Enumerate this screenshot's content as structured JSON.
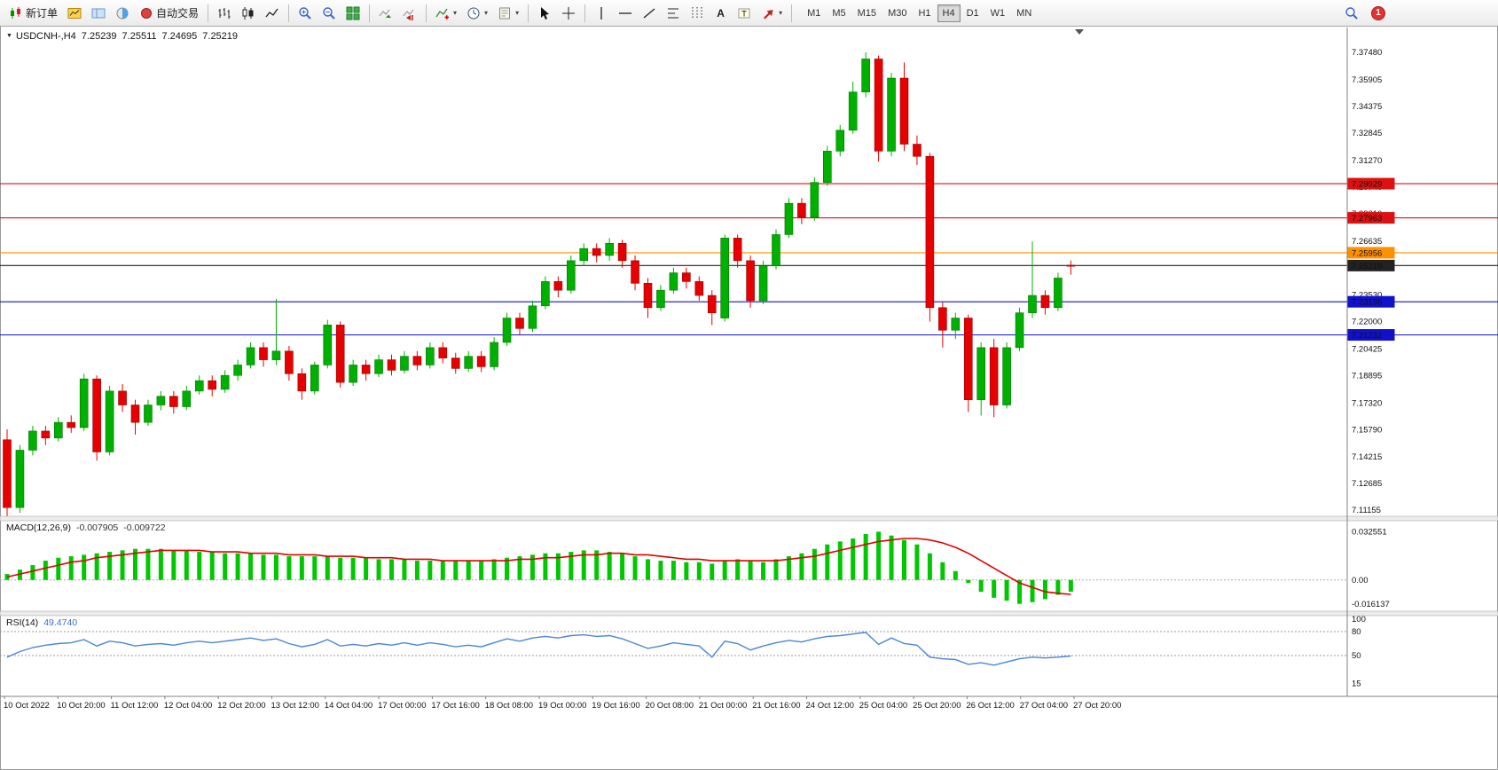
{
  "toolbar": {
    "new_order_label": "新订单",
    "autotrading_label": "自动交易",
    "text_tool_label": "A",
    "timeframes": [
      "M1",
      "M5",
      "M15",
      "M30",
      "H1",
      "H4",
      "D1",
      "W1",
      "MN"
    ],
    "active_timeframe": "H4",
    "notification_count": "1"
  },
  "main_chart": {
    "title_symbol": "USDCNH-,H4",
    "ohlc_text": {
      "open": "7.25239",
      "high": "7.25511",
      "low": "7.24695",
      "close": "7.25219"
    },
    "price_axis_labels": [
      "7.37480",
      "7.35905",
      "7.34375",
      "7.32845",
      "7.31270",
      "7.29740",
      "7.28210",
      "7.26635",
      "7.25105",
      "7.23530",
      "7.22000",
      "7.20425",
      "7.18895",
      "7.17320",
      "7.15790",
      "7.14215",
      "7.12685",
      "7.11155"
    ],
    "time_axis_labels": [
      "10 Oct 2022",
      "10 Oct 20:00",
      "11 Oct 12:00",
      "12 Oct 04:00",
      "12 Oct 20:00",
      "13 Oct 12:00",
      "14 Oct 04:00",
      "17 Oct 00:00",
      "17 Oct 16:00",
      "18 Oct 08:00",
      "19 Oct 00:00",
      "19 Oct 16:00",
      "20 Oct 08:00",
      "21 Oct 00:00",
      "21 Oct 16:00",
      "24 Oct 12:00",
      "25 Oct 04:00",
      "25 Oct 20:00",
      "26 Oct 12:00",
      "27 Oct 04:00",
      "27 Oct 20:00"
    ]
  },
  "macd_panel": {
    "name": "MACD(12,26,9)",
    "main_value": "-0.007905",
    "signal_value": "-0.009722",
    "axis_labels": [
      "0.032551",
      "0.00",
      "-0.016137"
    ]
  },
  "rsi_panel": {
    "name": "RSI(14)",
    "value": "49.4740",
    "axis_labels": [
      "100",
      "80",
      "50",
      "15"
    ]
  },
  "chart_data": {
    "main": {
      "type": "candlestick",
      "symbol": "USDCNH-",
      "period": "H4",
      "ylim": [
        7.1085,
        7.3891
      ],
      "up_color": "#00b000",
      "down_color": "#e60000",
      "hlines": [
        {
          "price": 7.29929,
          "label": "7.29929",
          "color": "#dd1111"
        },
        {
          "price": 7.27963,
          "label": "7.27963",
          "color": "#dd1111"
        },
        {
          "price": 7.25956,
          "label": "7.25956",
          "color": "#ff9000"
        },
        {
          "price": 7.25219,
          "label": "7.25219",
          "color": "#222222"
        },
        {
          "price": 7.23136,
          "label": "7.23136",
          "color": "#1111cc"
        },
        {
          "price": 7.21232,
          "label": "7.21232",
          "color": "#1111cc"
        }
      ],
      "ohlc": [
        [
          7.152,
          7.158,
          7.108,
          7.113
        ],
        [
          7.113,
          7.149,
          7.11,
          7.146
        ],
        [
          7.146,
          7.16,
          7.143,
          7.157
        ],
        [
          7.157,
          7.16,
          7.149,
          7.153
        ],
        [
          7.153,
          7.165,
          7.151,
          7.162
        ],
        [
          7.162,
          7.166,
          7.156,
          7.159
        ],
        [
          7.159,
          7.19,
          7.157,
          7.187
        ],
        [
          7.187,
          7.189,
          7.14,
          7.145
        ],
        [
          7.145,
          7.183,
          7.143,
          7.18
        ],
        [
          7.18,
          7.184,
          7.168,
          7.172
        ],
        [
          7.172,
          7.175,
          7.155,
          7.162
        ],
        [
          7.162,
          7.175,
          7.16,
          7.172
        ],
        [
          7.172,
          7.18,
          7.169,
          7.177
        ],
        [
          7.177,
          7.18,
          7.167,
          7.171
        ],
        [
          7.171,
          7.183,
          7.169,
          7.18
        ],
        [
          7.18,
          7.189,
          7.178,
          7.186
        ],
        [
          7.186,
          7.189,
          7.177,
          7.181
        ],
        [
          7.181,
          7.192,
          7.179,
          7.189
        ],
        [
          7.189,
          7.198,
          7.186,
          7.195
        ],
        [
          7.195,
          7.208,
          7.193,
          7.205
        ],
        [
          7.205,
          7.208,
          7.194,
          7.198
        ],
        [
          7.198,
          7.233,
          7.195,
          7.203
        ],
        [
          7.203,
          7.206,
          7.186,
          7.19
        ],
        [
          7.19,
          7.193,
          7.175,
          7.18
        ],
        [
          7.18,
          7.197,
          7.178,
          7.195
        ],
        [
          7.195,
          7.221,
          7.193,
          7.218
        ],
        [
          7.218,
          7.22,
          7.182,
          7.185
        ],
        [
          7.185,
          7.198,
          7.183,
          7.195
        ],
        [
          7.195,
          7.198,
          7.186,
          7.19
        ],
        [
          7.19,
          7.201,
          7.188,
          7.198
        ],
        [
          7.198,
          7.201,
          7.189,
          7.192
        ],
        [
          7.192,
          7.203,
          7.19,
          7.2
        ],
        [
          7.2,
          7.203,
          7.192,
          7.195
        ],
        [
          7.195,
          7.208,
          7.193,
          7.205
        ],
        [
          7.205,
          7.208,
          7.196,
          7.199
        ],
        [
          7.199,
          7.202,
          7.19,
          7.193
        ],
        [
          7.193,
          7.203,
          7.191,
          7.2
        ],
        [
          7.2,
          7.203,
          7.191,
          7.194
        ],
        [
          7.194,
          7.211,
          7.192,
          7.208
        ],
        [
          7.208,
          7.225,
          7.206,
          7.222
        ],
        [
          7.222,
          7.225,
          7.212,
          7.216
        ],
        [
          7.216,
          7.232,
          7.214,
          7.229
        ],
        [
          7.229,
          7.246,
          7.227,
          7.243
        ],
        [
          7.243,
          7.246,
          7.234,
          7.238
        ],
        [
          7.238,
          7.258,
          7.236,
          7.255
        ],
        [
          7.255,
          7.265,
          7.252,
          7.262
        ],
        [
          7.262,
          7.265,
          7.254,
          7.258
        ],
        [
          7.258,
          7.268,
          7.255,
          7.265
        ],
        [
          7.265,
          7.267,
          7.251,
          7.255
        ],
        [
          7.255,
          7.258,
          7.238,
          7.242
        ],
        [
          7.242,
          7.245,
          7.222,
          7.228
        ],
        [
          7.228,
          7.241,
          7.226,
          7.238
        ],
        [
          7.238,
          7.251,
          7.236,
          7.248
        ],
        [
          7.248,
          7.251,
          7.239,
          7.243
        ],
        [
          7.243,
          7.246,
          7.232,
          7.235
        ],
        [
          7.235,
          7.238,
          7.218,
          7.225
        ],
        [
          7.222,
          7.27,
          7.22,
          7.268
        ],
        [
          7.268,
          7.27,
          7.251,
          7.255
        ],
        [
          7.255,
          7.258,
          7.228,
          7.232
        ],
        [
          7.232,
          7.255,
          7.23,
          7.252
        ],
        [
          7.252,
          7.273,
          7.25,
          7.27
        ],
        [
          7.27,
          7.291,
          7.268,
          7.288
        ],
        [
          7.288,
          7.291,
          7.276,
          7.28
        ],
        [
          7.28,
          7.303,
          7.278,
          7.3
        ],
        [
          7.3,
          7.321,
          7.298,
          7.318
        ],
        [
          7.318,
          7.333,
          7.315,
          7.33
        ],
        [
          7.33,
          7.358,
          7.328,
          7.352
        ],
        [
          7.352,
          7.3748,
          7.349,
          7.371
        ],
        [
          7.371,
          7.373,
          7.312,
          7.318
        ],
        [
          7.318,
          7.363,
          7.315,
          7.36
        ],
        [
          7.36,
          7.369,
          7.318,
          7.322
        ],
        [
          7.322,
          7.327,
          7.31,
          7.315
        ],
        [
          7.315,
          7.317,
          7.22,
          7.228
        ],
        [
          7.228,
          7.231,
          7.205,
          7.215
        ],
        [
          7.215,
          7.225,
          7.21,
          7.222
        ],
        [
          7.222,
          7.224,
          7.168,
          7.175
        ],
        [
          7.175,
          7.208,
          7.166,
          7.205
        ],
        [
          7.205,
          7.21,
          7.165,
          7.172
        ],
        [
          7.172,
          7.208,
          7.17,
          7.205
        ],
        [
          7.205,
          7.228,
          7.203,
          7.225
        ],
        [
          7.225,
          7.266,
          7.222,
          7.235
        ],
        [
          7.235,
          7.238,
          7.224,
          7.228
        ],
        [
          7.228,
          7.248,
          7.226,
          7.245
        ],
        [
          7.25239,
          7.25511,
          7.24695,
          7.25219
        ]
      ]
    },
    "macd": {
      "type": "bar+line",
      "ylim": [
        -0.0205,
        0.04
      ],
      "zero_line": 0,
      "histogram_color": "#00c800",
      "signal_color": "#e00000",
      "histogram": [
        0.004,
        0.007,
        0.01,
        0.013,
        0.015,
        0.016,
        0.017,
        0.018,
        0.019,
        0.02,
        0.021,
        0.021,
        0.021,
        0.02,
        0.02,
        0.019,
        0.019,
        0.018,
        0.018,
        0.018,
        0.017,
        0.017,
        0.016,
        0.016,
        0.016,
        0.016,
        0.015,
        0.015,
        0.015,
        0.014,
        0.014,
        0.014,
        0.013,
        0.013,
        0.013,
        0.013,
        0.013,
        0.013,
        0.014,
        0.015,
        0.016,
        0.017,
        0.018,
        0.018,
        0.019,
        0.02,
        0.02,
        0.019,
        0.018,
        0.016,
        0.014,
        0.013,
        0.013,
        0.012,
        0.012,
        0.011,
        0.013,
        0.014,
        0.013,
        0.012,
        0.014,
        0.016,
        0.018,
        0.021,
        0.024,
        0.026,
        0.028,
        0.031,
        0.0326,
        0.03,
        0.027,
        0.024,
        0.018,
        0.012,
        0.006,
        -0.002,
        -0.008,
        -0.012,
        -0.014,
        -0.0161,
        -0.015,
        -0.013,
        -0.01,
        -0.0079
      ],
      "signal": [
        0.002,
        0.004,
        0.006,
        0.008,
        0.01,
        0.012,
        0.013,
        0.015,
        0.016,
        0.017,
        0.018,
        0.019,
        0.02,
        0.02,
        0.02,
        0.02,
        0.019,
        0.019,
        0.019,
        0.018,
        0.018,
        0.018,
        0.017,
        0.017,
        0.017,
        0.016,
        0.016,
        0.016,
        0.015,
        0.015,
        0.015,
        0.014,
        0.014,
        0.014,
        0.013,
        0.013,
        0.013,
        0.013,
        0.013,
        0.013,
        0.014,
        0.014,
        0.015,
        0.015,
        0.016,
        0.017,
        0.017,
        0.018,
        0.018,
        0.017,
        0.017,
        0.016,
        0.015,
        0.014,
        0.014,
        0.013,
        0.013,
        0.013,
        0.013,
        0.013,
        0.013,
        0.014,
        0.015,
        0.016,
        0.018,
        0.02,
        0.022,
        0.024,
        0.026,
        0.027,
        0.028,
        0.028,
        0.027,
        0.025,
        0.022,
        0.018,
        0.013,
        0.008,
        0.003,
        -0.002,
        -0.005,
        -0.008,
        -0.009,
        -0.0097
      ]
    },
    "rsi": {
      "type": "line",
      "ylim": [
        0,
        100
      ],
      "levels": [
        80,
        50
      ],
      "line_color": "#4a86d8",
      "values": [
        48,
        55,
        60,
        63,
        65,
        66,
        70,
        62,
        68,
        66,
        62,
        64,
        65,
        63,
        66,
        68,
        66,
        68,
        70,
        72,
        69,
        71,
        65,
        61,
        64,
        70,
        62,
        64,
        62,
        65,
        63,
        66,
        63,
        66,
        64,
        61,
        63,
        61,
        66,
        71,
        68,
        72,
        74,
        72,
        75,
        76,
        74,
        75,
        71,
        65,
        59,
        62,
        66,
        64,
        62,
        48,
        68,
        65,
        57,
        62,
        66,
        69,
        67,
        71,
        74,
        75,
        77,
        79,
        64,
        72,
        65,
        63,
        48,
        46,
        45,
        39,
        41,
        38,
        42,
        46,
        48,
        47,
        48,
        49.474
      ]
    }
  }
}
